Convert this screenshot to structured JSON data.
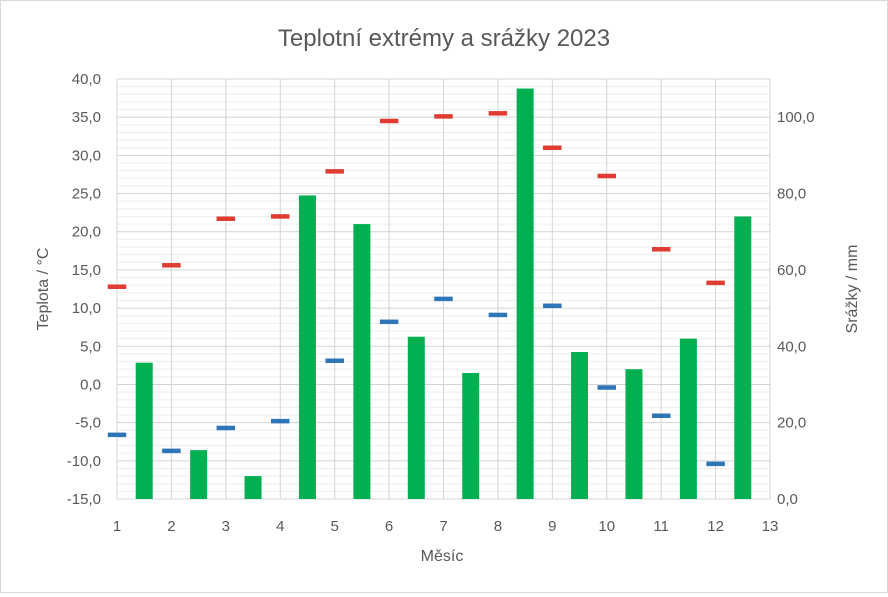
{
  "chart_data": {
    "type": "bar",
    "title": "Teplotní extrémy a srážky 2023",
    "xlabel": "Měsíc",
    "ylabel": "Teplota / °C",
    "y2label": "Srážky / mm",
    "xlim": [
      1,
      13
    ],
    "ylim": [
      -15,
      40
    ],
    "y2lim": [
      0,
      110
    ],
    "x_ticks": [
      1,
      2,
      3,
      4,
      5,
      6,
      7,
      8,
      9,
      10,
      11,
      12,
      13
    ],
    "y_ticks": [
      "-15,0",
      "-10,0",
      "-5,0",
      "0,0",
      "5,0",
      "10,0",
      "15,0",
      "20,0",
      "25,0",
      "30,0",
      "35,0",
      "40,0"
    ],
    "y2_ticks": [
      "0,0",
      "20,0",
      "40,0",
      "60,0",
      "80,0",
      "100,0"
    ],
    "grid": true,
    "series": [
      {
        "kind": "marker-max",
        "color": "#e03c31",
        "x": [
          1,
          2,
          3,
          4,
          5,
          6,
          7,
          8,
          9,
          10,
          11,
          12
        ],
        "values": [
          12.8,
          15.6,
          21.7,
          22.0,
          27.9,
          34.5,
          35.1,
          35.5,
          31.0,
          27.3,
          17.7,
          13.3
        ]
      },
      {
        "kind": "marker-min",
        "color": "#2e75b6",
        "x": [
          1,
          2,
          3,
          4,
          5,
          6,
          7,
          8,
          9,
          10,
          11,
          12
        ],
        "values": [
          -6.6,
          -8.7,
          -5.7,
          -4.8,
          3.1,
          8.2,
          11.2,
          9.1,
          10.3,
          -0.4,
          -4.1,
          -10.4
        ]
      },
      {
        "kind": "bar",
        "axis": "secondary",
        "color": "#00b050",
        "x": [
          1.5,
          2.5,
          3.5,
          4.5,
          5.5,
          6.5,
          7.5,
          8.5,
          9.5,
          10.5,
          11.5,
          12.5
        ],
        "values": [
          35.7,
          12.8,
          6.0,
          79.5,
          72.0,
          42.5,
          33.0,
          107.5,
          38.5,
          34.0,
          42.0,
          74.0
        ]
      }
    ]
  }
}
